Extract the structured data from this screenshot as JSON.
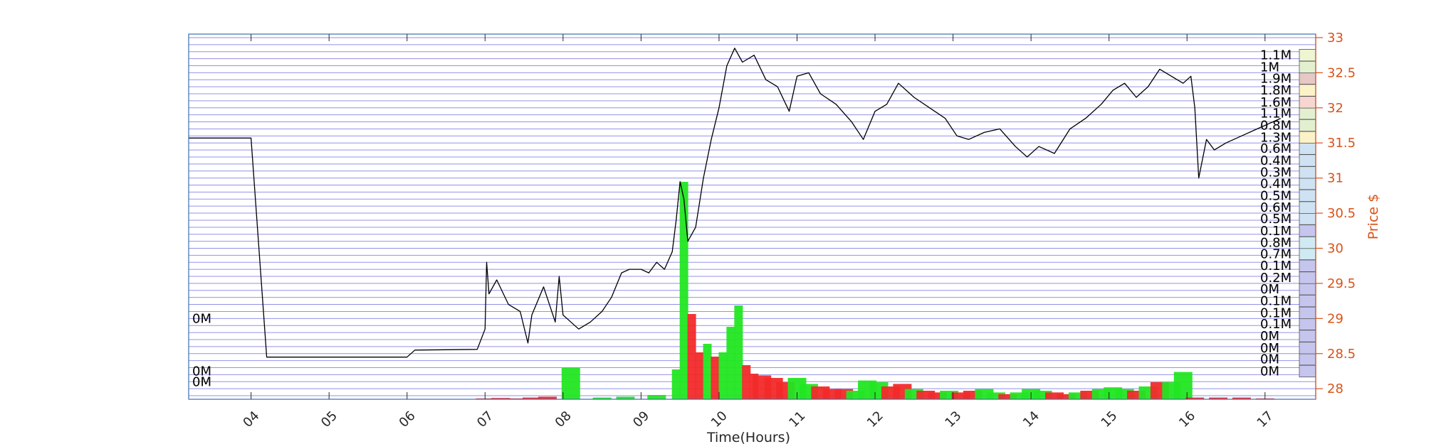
{
  "chart_data": {
    "type": "line",
    "xlabel": "Time(Hours)",
    "ylabel": "Price $",
    "xlim": [
      3.2,
      17.65
    ],
    "ylim": [
      27.85,
      33.05
    ],
    "x_ticks": [
      "04",
      "05",
      "06",
      "07",
      "08",
      "09",
      "10",
      "11",
      "12",
      "13",
      "14",
      "15",
      "16",
      "17"
    ],
    "y_ticks": [
      28,
      28.5,
      29,
      29.5,
      30,
      30.5,
      31,
      31.5,
      32,
      32.5,
      33
    ],
    "grid": true,
    "price_series": {
      "x": [
        3.2,
        4.0,
        4.2,
        6.0,
        6.1,
        6.9,
        7.0,
        7.02,
        7.05,
        7.15,
        7.3,
        7.45,
        7.55,
        7.6,
        7.75,
        7.9,
        7.95,
        8.0,
        8.1,
        8.2,
        8.35,
        8.5,
        8.62,
        8.75,
        8.85,
        9.0,
        9.1,
        9.2,
        9.3,
        9.4,
        9.45,
        9.5,
        9.55,
        9.6,
        9.7,
        9.8,
        9.9,
        10.0,
        10.1,
        10.2,
        10.3,
        10.45,
        10.6,
        10.75,
        10.9,
        11.0,
        11.15,
        11.3,
        11.5,
        11.7,
        11.85,
        12.0,
        12.15,
        12.3,
        12.5,
        12.7,
        12.9,
        13.05,
        13.2,
        13.4,
        13.6,
        13.8,
        13.95,
        14.1,
        14.3,
        14.5,
        14.7,
        14.9,
        15.05,
        15.2,
        15.35,
        15.5,
        15.65,
        15.8,
        15.95,
        16.05,
        16.1,
        16.15,
        16.25,
        16.35,
        16.5,
        16.7,
        16.9,
        17.0,
        17.1,
        17.2
      ],
      "y": [
        31.57,
        31.57,
        28.45,
        28.45,
        28.55,
        28.56,
        28.85,
        29.8,
        29.35,
        29.55,
        29.2,
        29.1,
        28.65,
        29.05,
        29.45,
        28.95,
        29.6,
        29.05,
        28.95,
        28.85,
        28.95,
        29.1,
        29.3,
        29.65,
        29.7,
        29.7,
        29.65,
        29.8,
        29.7,
        29.95,
        30.4,
        30.95,
        30.7,
        30.1,
        30.3,
        31.0,
        31.55,
        32.0,
        32.6,
        32.85,
        32.65,
        32.75,
        32.4,
        32.3,
        31.95,
        32.45,
        32.5,
        32.2,
        32.05,
        31.8,
        31.55,
        31.95,
        32.05,
        32.35,
        32.15,
        32.0,
        31.85,
        31.6,
        31.55,
        31.65,
        31.7,
        31.45,
        31.3,
        31.45,
        31.35,
        31.7,
        31.85,
        32.05,
        32.25,
        32.35,
        32.15,
        32.3,
        32.55,
        32.45,
        32.35,
        32.45,
        32.0,
        31.0,
        31.55,
        31.4,
        31.5,
        31.6,
        31.7,
        31.75,
        31.8,
        31.85
      ]
    },
    "volume_bars": {
      "x": [
        7.0,
        7.2,
        7.4,
        7.6,
        7.8,
        8.1,
        8.5,
        8.8,
        9.2,
        9.45,
        9.55,
        9.65,
        9.75,
        9.85,
        9.95,
        10.05,
        10.15,
        10.25,
        10.35,
        10.45,
        10.55,
        10.7,
        10.85,
        11.0,
        11.15,
        11.3,
        11.45,
        11.6,
        11.75,
        11.9,
        12.05,
        12.2,
        12.35,
        12.5,
        12.65,
        12.8,
        12.95,
        13.1,
        13.25,
        13.4,
        13.55,
        13.7,
        13.85,
        14.0,
        14.15,
        14.3,
        14.45,
        14.6,
        14.75,
        14.9,
        15.05,
        15.2,
        15.35,
        15.5,
        15.65,
        15.8,
        15.95,
        16.1,
        16.4,
        16.7,
        17.0
      ],
      "height": [
        0.01,
        0.015,
        0.01,
        0.02,
        0.03,
        0.37,
        0.02,
        0.03,
        0.05,
        0.35,
        2.55,
        1.0,
        0.55,
        0.65,
        0.5,
        0.55,
        0.85,
        1.1,
        0.4,
        0.3,
        0.28,
        0.25,
        0.2,
        0.25,
        0.18,
        0.15,
        0.12,
        0.12,
        0.1,
        0.22,
        0.2,
        0.15,
        0.18,
        0.12,
        0.1,
        0.08,
        0.1,
        0.08,
        0.1,
        0.12,
        0.08,
        0.06,
        0.08,
        0.12,
        0.1,
        0.08,
        0.06,
        0.08,
        0.1,
        0.12,
        0.14,
        0.12,
        0.1,
        0.15,
        0.2,
        0.2,
        0.32,
        0.02,
        0.02,
        0.02,
        0.01
      ],
      "direction": [
        "down",
        "down",
        "down",
        "down",
        "down",
        "up",
        "up",
        "up",
        "up",
        "up",
        "up",
        "down",
        "down",
        "up",
        "down",
        "up",
        "up",
        "up",
        "down",
        "down",
        "down",
        "down",
        "down",
        "up",
        "up",
        "down",
        "down",
        "down",
        "up",
        "up",
        "up",
        "down",
        "down",
        "up",
        "down",
        "down",
        "up",
        "down",
        "down",
        "up",
        "up",
        "down",
        "up",
        "up",
        "up",
        "down",
        "down",
        "up",
        "down",
        "up",
        "up",
        "up",
        "down",
        "up",
        "down",
        "up",
        "up",
        "down",
        "down",
        "down",
        "down"
      ]
    },
    "volume_profile": {
      "price_levels": [
        28.25,
        28.42,
        28.58,
        28.75,
        28.92,
        29.08,
        29.25,
        29.42,
        29.58,
        29.75,
        29.92,
        30.08,
        30.25,
        30.42,
        30.58,
        30.75,
        30.92,
        31.08,
        31.25,
        31.42,
        31.58,
        31.75,
        31.92,
        32.08,
        32.25,
        32.42,
        32.58,
        32.75
      ],
      "labels": [
        "0M",
        "0M",
        "0M",
        "0M",
        "0.1M",
        "0.1M",
        "0.1M",
        "0M",
        "0.2M",
        "0.1M",
        "0.7M",
        "0.8M",
        "0.1M",
        "0.5M",
        "0.6M",
        "0.5M",
        "0.4M",
        "0.3M",
        "0.4M",
        "0.6M",
        "1.3M",
        "0.8M",
        "1.1M",
        "1.6M",
        "1.8M",
        "1.9M",
        "1M",
        "1.1M"
      ],
      "colors": [
        "#c5c5ee",
        "#c5c5ee",
        "#c5c5ee",
        "#c5c5ee",
        "#c5c5ee",
        "#c5c5ee",
        "#c5c5ee",
        "#c5c5ee",
        "#c5c5ee",
        "#c5c5ee",
        "#cfeaf3",
        "#cfeaf3",
        "#c5c5ee",
        "#cfe2f3",
        "#cfe2f3",
        "#cfe2f3",
        "#cfe2f3",
        "#cfe2f3",
        "#cfe2f3",
        "#cfe2f3",
        "#fbf2c8",
        "#e3f0d0",
        "#e3f0d0",
        "#f8d6d0",
        "#fbf2c8",
        "#e8c7c7",
        "#e3f0d0",
        "#eef5d2"
      ]
    },
    "left_labels": [
      {
        "text": "0M",
        "price": 29.0
      },
      {
        "text": "0M",
        "price": 28.25
      },
      {
        "text": "0M",
        "price": 28.1
      }
    ],
    "colors": {
      "grid": "#8080e8",
      "frame": "#3a6fb0",
      "price_line": "#000000",
      "up_volume": "#22e622",
      "down_volume": "#f22a2a",
      "right_axis": "#D95319"
    }
  }
}
